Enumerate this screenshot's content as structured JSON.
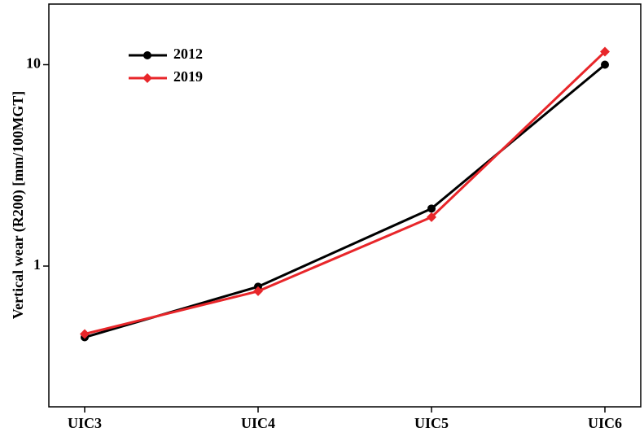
{
  "chart_data": {
    "type": "line",
    "y_label": "Vertical wear (R200) [mm/100MGT]",
    "categories": [
      "UIC3",
      "UIC4",
      "UIC5",
      "UIC6"
    ],
    "series": [
      {
        "name": "2012",
        "color": "#000000",
        "marker": "circle",
        "values": [
          0.443,
          0.79,
          1.93,
          10
        ]
      },
      {
        "name": "2019",
        "color": "#e8262a",
        "marker": "diamond",
        "values": [
          0.46,
          0.75,
          1.75,
          11.6
        ]
      }
    ],
    "ylim": [
      0.2,
      20
    ],
    "yticks": [
      1,
      10
    ],
    "log_y": true,
    "legend": "upper left"
  }
}
